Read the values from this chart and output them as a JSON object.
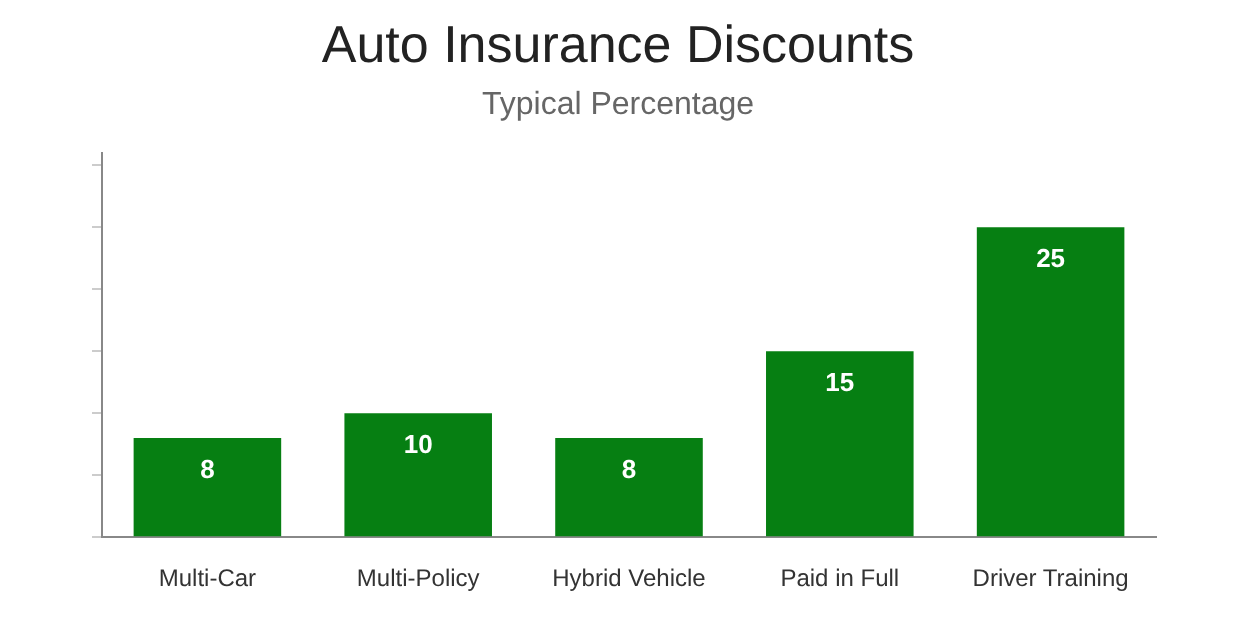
{
  "chart_data": {
    "type": "bar",
    "title": "Auto Insurance Discounts",
    "subtitle": "Typical Percentage",
    "categories": [
      "Multi-Car",
      "Multi-Policy",
      "Hybrid Vehicle",
      "Paid in Full",
      "Driver Training"
    ],
    "values": [
      8,
      10,
      8,
      15,
      25
    ],
    "color": "#067f12",
    "ylim": [
      0,
      31
    ],
    "yticks": [
      {
        "value": 0,
        "label": null
      },
      {
        "value": 5,
        "label": null
      },
      {
        "value": 10,
        "label": null
      },
      {
        "value": 15,
        "label": null
      },
      {
        "value": 20,
        "label": null
      },
      {
        "value": 25,
        "label": null
      },
      {
        "value": 30,
        "label": null
      }
    ],
    "data_labels": true,
    "grid": false,
    "legend": false
  }
}
